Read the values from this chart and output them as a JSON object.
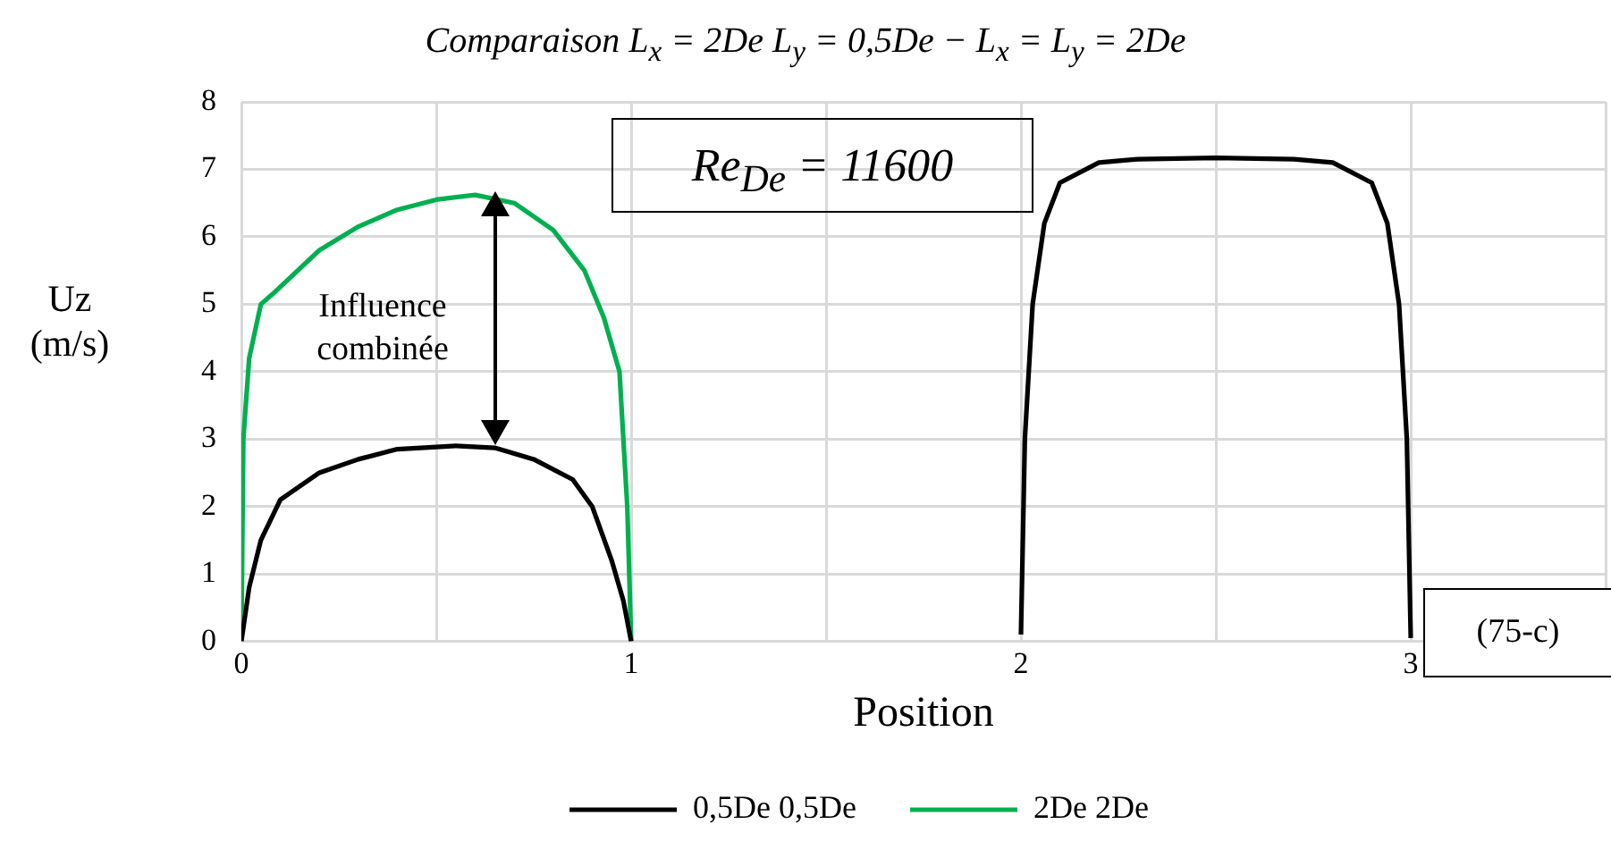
{
  "chart_data": {
    "type": "line",
    "title": "Comparaison L$_{x}$ = 2De L$_{y}$ = 0,5De − L$_{x}$ = L$_{y}$ = 2De",
    "xlabel": "Position",
    "ylabel": "Uz (m/s)",
    "xlim": [
      0,
      3.5
    ],
    "xticks": [
      0,
      {
        "value": 0.5,
        "label": null
      },
      1,
      {
        "value": 1.5,
        "label": null
      },
      2,
      {
        "value": 2.5,
        "label": null
      },
      3,
      {
        "value": 3.5,
        "label": null
      }
    ],
    "ylim": [
      0,
      8
    ],
    "yticks": [
      0,
      1,
      2,
      3,
      4,
      5,
      6,
      7,
      8
    ],
    "grid": true,
    "legend": "bottom",
    "marker": "none",
    "line_style": "solid",
    "annotations": [
      "Influence combinée",
      "Re$_{De}$ = 11600",
      "(75-c)"
    ],
    "series": [
      {
        "name": "0,5De 0,5De",
        "color": "#000000",
        "x": [
          0,
          0.02,
          0.05,
          0.1,
          0.2,
          0.3,
          0.4,
          0.55,
          0.65,
          0.75,
          0.85,
          0.9,
          0.95,
          0.98,
          1,
          1.5,
          2,
          2.01,
          2.03,
          2.06,
          2.1,
          2.2,
          2.3,
          2.5,
          2.7,
          2.8,
          2.9,
          2.94,
          2.97,
          2.99,
          3
        ],
        "values": [
          0,
          0.8,
          1.5,
          2.1,
          2.5,
          2.7,
          2.85,
          2.9,
          2.87,
          2.7,
          2.4,
          2,
          1.2,
          0.6,
          0,
          null,
          0.1,
          3,
          5,
          6.2,
          6.8,
          7.1,
          7.15,
          7.17,
          7.15,
          7.1,
          6.8,
          6.2,
          5,
          3,
          0.05
        ]
      },
      {
        "name": "2De 2De",
        "color": "#00b050",
        "x": [
          0,
          0.005,
          0.02,
          0.05,
          0.08,
          0.2,
          0.3,
          0.4,
          0.5,
          0.6,
          0.7,
          0.8,
          0.88,
          0.93,
          0.97,
          0.99,
          1
        ],
        "values": [
          0,
          3,
          4.2,
          5,
          5.15,
          5.8,
          6.15,
          6.4,
          6.55,
          6.62,
          6.5,
          6.1,
          5.5,
          4.8,
          4,
          2,
          0
        ]
      }
    ]
  }
}
